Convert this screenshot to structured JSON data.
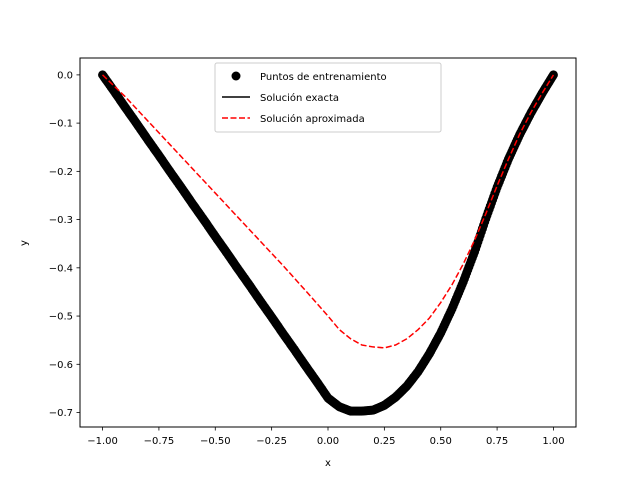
{
  "chart_data": {
    "type": "line",
    "title": "",
    "xlabel": "x",
    "ylabel": "y",
    "xlim": [
      -1.1,
      1.1
    ],
    "ylim": [
      -0.73,
      0.035
    ],
    "grid": false,
    "legend_position": "top-center",
    "x_ticks": [
      -1.0,
      -0.75,
      -0.5,
      -0.25,
      0.0,
      0.25,
      0.5,
      0.75,
      1.0
    ],
    "x_tick_labels": [
      "−1.00",
      "−0.75",
      "−0.50",
      "−0.25",
      "0.00",
      "0.25",
      "0.50",
      "0.75",
      "1.00"
    ],
    "y_ticks": [
      0.0,
      -0.1,
      -0.2,
      -0.3,
      -0.4,
      -0.5,
      -0.6,
      -0.7
    ],
    "y_tick_labels": [
      "0.0",
      "−0.1",
      "−0.2",
      "−0.3",
      "−0.4",
      "−0.5",
      "−0.6",
      "−0.7"
    ],
    "series": [
      {
        "name": "Puntos de entrenamiento",
        "style": "markers",
        "color": "#000000",
        "x": [
          -1.0,
          -0.95,
          -0.9,
          -0.85,
          -0.8,
          -0.75,
          -0.7,
          -0.65,
          -0.6,
          -0.55,
          -0.5,
          -0.45,
          -0.4,
          -0.35,
          -0.3,
          -0.25,
          -0.2,
          -0.15,
          -0.1,
          -0.05,
          0.0,
          0.05,
          0.1,
          0.15,
          0.2,
          0.25,
          0.3,
          0.35,
          0.4,
          0.45,
          0.5,
          0.55,
          0.6,
          0.65,
          0.7,
          0.75,
          0.8,
          0.85,
          0.9,
          0.95,
          1.0
        ],
        "y": [
          0.0,
          -0.033,
          -0.067,
          -0.1,
          -0.134,
          -0.167,
          -0.201,
          -0.234,
          -0.268,
          -0.301,
          -0.335,
          -0.368,
          -0.402,
          -0.435,
          -0.469,
          -0.502,
          -0.536,
          -0.569,
          -0.603,
          -0.636,
          -0.67,
          -0.688,
          -0.697,
          -0.697,
          -0.695,
          -0.685,
          -0.668,
          -0.645,
          -0.615,
          -0.578,
          -0.535,
          -0.485,
          -0.429,
          -0.367,
          -0.298,
          -0.233,
          -0.175,
          -0.124,
          -0.079,
          -0.038,
          0.0
        ]
      },
      {
        "name": "Solución exacta",
        "style": "solid",
        "color": "#000000",
        "x": [
          -1.0,
          0.0,
          0.05,
          0.1,
          0.15,
          0.2,
          0.25,
          0.3,
          0.35,
          0.4,
          0.45,
          0.5,
          0.55,
          0.6,
          0.65,
          0.7,
          0.75,
          0.8,
          0.85,
          0.9,
          0.95,
          1.0
        ],
        "y": [
          0.0,
          -0.67,
          -0.688,
          -0.697,
          -0.697,
          -0.695,
          -0.685,
          -0.668,
          -0.645,
          -0.615,
          -0.578,
          -0.535,
          -0.485,
          -0.429,
          -0.367,
          -0.298,
          -0.233,
          -0.175,
          -0.124,
          -0.079,
          -0.038,
          0.0
        ]
      },
      {
        "name": "Solución aproximada",
        "style": "dashed",
        "color": "#ff0000",
        "x": [
          -1.0,
          -0.9,
          -0.8,
          -0.7,
          -0.6,
          -0.5,
          -0.4,
          -0.3,
          -0.2,
          -0.1,
          0.0,
          0.05,
          0.1,
          0.15,
          0.2,
          0.25,
          0.3,
          0.35,
          0.4,
          0.45,
          0.5,
          0.55,
          0.6,
          0.65,
          0.7,
          0.75,
          0.8,
          0.85,
          0.9,
          0.95,
          1.0
        ],
        "y": [
          0.0,
          -0.045,
          -0.095,
          -0.145,
          -0.195,
          -0.245,
          -0.295,
          -0.345,
          -0.395,
          -0.447,
          -0.5,
          -0.528,
          -0.547,
          -0.56,
          -0.564,
          -0.566,
          -0.56,
          -0.547,
          -0.528,
          -0.504,
          -0.472,
          -0.435,
          -0.392,
          -0.343,
          -0.288,
          -0.23,
          -0.175,
          -0.123,
          -0.078,
          -0.038,
          0.0
        ]
      }
    ]
  }
}
